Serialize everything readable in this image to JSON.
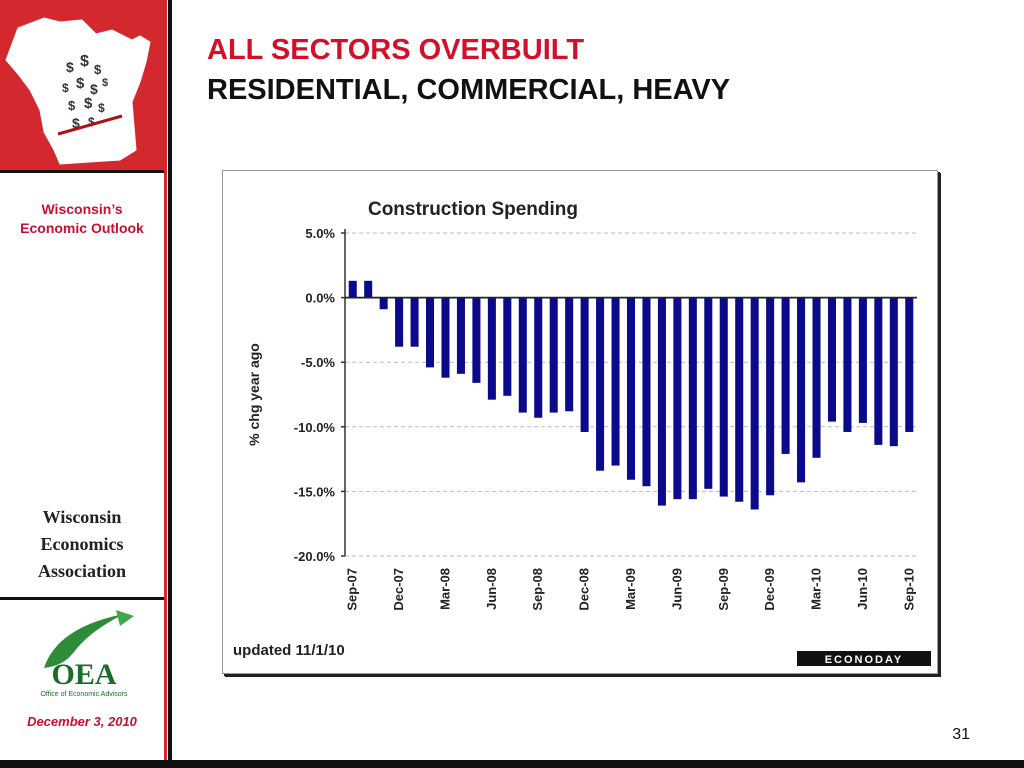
{
  "slide": {
    "title_line1": "ALL SECTORS OVERBUILT",
    "title_line2": "RESIDENTIAL, COMMERCIAL, HEAVY",
    "page_number": "31"
  },
  "sidebar": {
    "outlook_line1": "Wisconsin’s",
    "outlook_line2": "Economic Outlook",
    "association_line1": "Wisconsin",
    "association_line2": "Economics",
    "association_line3": "Association",
    "oea_logo_text": "OEA",
    "oea_logo_subtext": "Office of Economic Advisors",
    "date": "December 3, 2010",
    "state_map_icon": "wisconsin-map-with-dollar-signs-icon"
  },
  "colors": {
    "brand_red": "#d2282e",
    "bar_fill": "#0a0a8a",
    "grid": "#bbbbbb"
  },
  "chart_data": {
    "type": "bar",
    "title": "Construction Spending",
    "ylabel": "% chg year ago",
    "xlabel": "",
    "ylim": [
      -20,
      5
    ],
    "yticks": [
      "5.0%",
      "0.0%",
      "-5.0%",
      "-10.0%",
      "-15.0%",
      "-20.0%"
    ],
    "ytick_values": [
      5,
      0,
      -5,
      -10,
      -15,
      -20
    ],
    "grid": "horizontal dashed",
    "footnote": "updated 11/1/10",
    "source_badge": "ECONODAY",
    "categories": [
      "Sep-07",
      "Oct-07",
      "Nov-07",
      "Dec-07",
      "Jan-08",
      "Feb-08",
      "Mar-08",
      "Apr-08",
      "May-08",
      "Jun-08",
      "Jul-08",
      "Aug-08",
      "Sep-08",
      "Oct-08",
      "Nov-08",
      "Dec-08",
      "Jan-09",
      "Feb-09",
      "Mar-09",
      "Apr-09",
      "May-09",
      "Jun-09",
      "Jul-09",
      "Aug-09",
      "Sep-09",
      "Oct-09",
      "Nov-09",
      "Dec-09",
      "Jan-10",
      "Feb-10",
      "Mar-10",
      "Apr-10",
      "May-10",
      "Jun-10",
      "Jul-10",
      "Aug-10",
      "Sep-10"
    ],
    "tick_labels": [
      "Sep-07",
      "Dec-07",
      "Mar-08",
      "Jun-08",
      "Sep-08",
      "Dec-08",
      "Mar-09",
      "Jun-09",
      "Sep-09",
      "Dec-09",
      "Mar-10",
      "Jun-10",
      "Sep-10"
    ],
    "values": [
      1.3,
      1.3,
      -0.9,
      -3.8,
      -3.8,
      -5.4,
      -6.2,
      -5.9,
      -6.6,
      -7.9,
      -7.6,
      -8.9,
      -9.3,
      -8.9,
      -8.8,
      -10.4,
      -13.4,
      -13.0,
      -14.1,
      -14.6,
      -16.1,
      -15.6,
      -15.6,
      -14.8,
      -15.4,
      -15.8,
      -16.4,
      -15.3,
      -12.1,
      -14.3,
      -12.4,
      -9.6,
      -10.4,
      -9.7,
      -11.4,
      -11.5,
      -10.4
    ]
  }
}
